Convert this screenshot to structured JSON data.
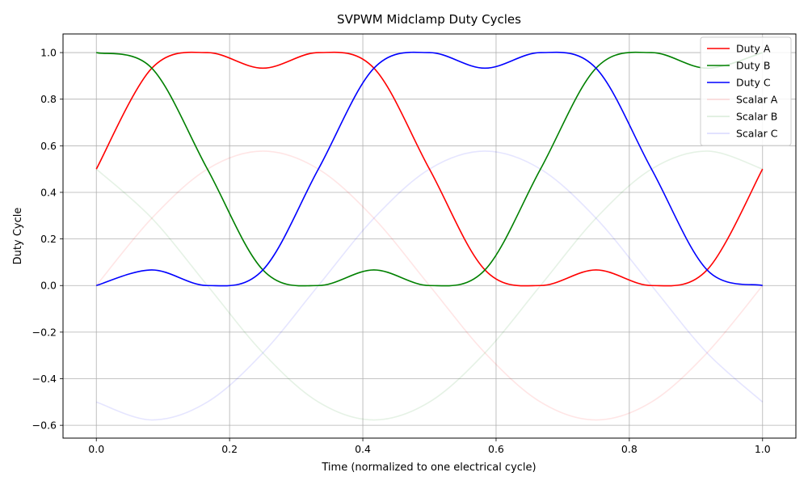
{
  "chart_data": {
    "type": "line",
    "title": "SVPWM Midclamp Duty Cycles",
    "xlabel": "Time (normalized to one electrical cycle)",
    "ylabel": "Duty Cycle",
    "xlim": [
      -0.05,
      1.05
    ],
    "ylim": [
      -0.655,
      1.08
    ],
    "x_ticks": [
      0.0,
      0.2,
      0.4,
      0.6,
      0.8,
      1.0
    ],
    "x_tick_labels": [
      "0.0",
      "0.2",
      "0.4",
      "0.6",
      "0.8",
      "1.0"
    ],
    "y_ticks": [
      -0.6,
      -0.4,
      -0.2,
      0.0,
      0.2,
      0.4,
      0.6,
      0.8,
      1.0
    ],
    "y_tick_labels": [
      "−0.6",
      "−0.4",
      "−0.2",
      "0.0",
      "0.2",
      "0.4",
      "0.6",
      "0.8",
      "1.0"
    ],
    "grid": true,
    "legend_position": "top-right",
    "x": [
      0.0,
      0.0833,
      0.1667,
      0.25,
      0.3333,
      0.4167,
      0.5,
      0.5833,
      0.6667,
      0.75,
      0.8333,
      0.9167,
      1.0
    ],
    "series": [
      {
        "name": "Duty A",
        "color": "#ff0000",
        "opacity": 1.0,
        "values": [
          0.5,
          0.933,
          1.0,
          0.933,
          1.0,
          0.933,
          0.5,
          0.067,
          0.0,
          0.067,
          0.0,
          0.067,
          0.5
        ]
      },
      {
        "name": "Duty B",
        "color": "#008000",
        "opacity": 1.0,
        "values": [
          1.0,
          0.933,
          0.5,
          0.067,
          0.0,
          0.067,
          0.0,
          0.067,
          0.5,
          0.933,
          1.0,
          0.933,
          1.0
        ]
      },
      {
        "name": "Duty C",
        "color": "#0000ff",
        "opacity": 1.0,
        "values": [
          0.0,
          0.067,
          0.0,
          0.067,
          0.5,
          0.933,
          1.0,
          0.933,
          1.0,
          0.933,
          0.5,
          0.067,
          0.0
        ]
      },
      {
        "name": "Scalar A",
        "color": "#ff0000",
        "opacity": 0.1,
        "values": [
          0.0,
          0.289,
          0.5,
          0.577,
          0.5,
          0.289,
          0.0,
          -0.289,
          -0.5,
          -0.577,
          -0.5,
          -0.289,
          0.0
        ]
      },
      {
        "name": "Scalar B",
        "color": "#008000",
        "opacity": 0.1,
        "values": [
          0.5,
          0.289,
          0.0,
          -0.289,
          -0.5,
          -0.577,
          -0.5,
          -0.289,
          0.0,
          0.289,
          0.5,
          0.577,
          0.5
        ]
      },
      {
        "name": "Scalar C",
        "color": "#0000ff",
        "opacity": 0.1,
        "values": [
          -0.5,
          -0.577,
          -0.5,
          -0.289,
          0.0,
          0.289,
          0.5,
          0.577,
          0.5,
          0.289,
          0.0,
          -0.289,
          -0.5
        ]
      }
    ]
  }
}
